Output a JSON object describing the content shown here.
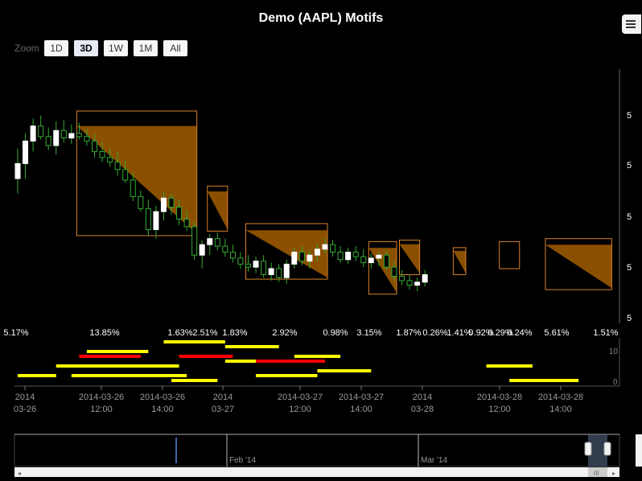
{
  "chart_data": {
    "type": "candlestick",
    "title": "Demo (AAPL) Motifs",
    "x_tick_labels": [
      {
        "date": "2014-03-26 10:00",
        "line1": "2014",
        "line2": "03-26"
      },
      {
        "date": "2014-03-26 12:00",
        "line1": "2014-03-26",
        "line2": "12:00"
      },
      {
        "date": "2014-03-26 14:00",
        "line1": "2014-03-26",
        "line2": "14:00"
      },
      {
        "date": "2014-03-27 10:00",
        "line1": "2014",
        "line2": "03-27"
      },
      {
        "date": "2014-03-27 12:00",
        "line1": "2014-03-27",
        "line2": "12:00"
      },
      {
        "date": "2014-03-27 14:00",
        "line1": "2014-03-27",
        "line2": "14:00"
      },
      {
        "date": "2014-03-28 10:00",
        "line1": "2014",
        "line2": "03-28"
      },
      {
        "date": "2014-03-28 12:00",
        "line1": "2014-03-28",
        "line2": "12:00"
      },
      {
        "date": "2014-03-28 14:00",
        "line1": "2014-03-28",
        "line2": "14:00"
      }
    ],
    "price_axis_label_visible": "5",
    "volume_axis_ticks": [
      "10",
      "0"
    ],
    "motif_percent_labels": [
      "5.17%",
      "13.85%",
      "1.63%",
      "2.51%",
      "1.83%",
      "2.92%",
      "0.98%",
      "3.15%",
      "1.87%",
      "0.26%",
      "1.41%",
      "0.92%",
      "0.29%",
      "0.24%",
      "5.61%",
      "1.51%"
    ],
    "candles": [
      [
        0,
        549,
        551,
        548,
        550
      ],
      [
        1,
        550,
        552,
        549,
        551.5
      ],
      [
        2,
        551.5,
        553,
        550.8,
        552.5
      ],
      [
        3,
        552.5,
        553.2,
        551.6,
        551.8
      ],
      [
        4,
        551.8,
        552.4,
        550.9,
        551.2
      ],
      [
        5,
        551.2,
        552.8,
        550.6,
        552.2
      ],
      [
        6,
        552.2,
        552.9,
        551.4,
        551.7
      ],
      [
        7,
        551.7,
        552.6,
        551.3,
        552.0
      ],
      [
        8,
        552.0,
        552.7,
        551.6,
        551.8
      ],
      [
        9,
        551.8,
        552.3,
        551.2,
        551.5
      ],
      [
        10,
        551.5,
        552.0,
        550.4,
        550.8
      ],
      [
        11,
        550.8,
        551.4,
        550.1,
        550.4
      ],
      [
        12,
        550.4,
        551.0,
        549.8,
        550.1
      ],
      [
        13,
        550.1,
        550.8,
        549.2,
        549.6
      ],
      [
        14,
        549.6,
        550.2,
        548.7,
        548.9
      ],
      [
        15,
        548.9,
        549.4,
        547.5,
        547.8
      ],
      [
        16,
        547.8,
        548.2,
        546.8,
        547.0
      ],
      [
        17,
        547.0,
        547.6,
        545.2,
        545.6
      ],
      [
        18,
        545.6,
        547.2,
        545.0,
        546.8
      ],
      [
        19,
        546.8,
        548.1,
        546.2,
        547.7
      ],
      [
        20,
        547.7,
        548.0,
        546.6,
        547.1
      ],
      [
        21,
        547.1,
        547.6,
        545.9,
        546.3
      ],
      [
        22,
        546.3,
        546.9,
        545.5,
        545.8
      ],
      [
        23,
        545.8,
        546.1,
        543.6,
        543.9
      ],
      [
        24,
        543.9,
        544.9,
        543.0,
        544.6
      ],
      [
        25,
        544.6,
        545.3,
        543.9,
        545.0
      ],
      [
        26,
        545.0,
        545.4,
        544.2,
        544.5
      ],
      [
        27,
        544.5,
        545.0,
        543.8,
        544.1
      ],
      [
        28,
        544.1,
        544.6,
        543.4,
        543.7
      ],
      [
        29,
        543.7,
        544.1,
        543.0,
        543.3
      ],
      [
        30,
        543.3,
        543.9,
        542.8,
        543.1
      ],
      [
        31,
        543.1,
        543.8,
        542.7,
        543.5
      ],
      [
        32,
        543.5,
        543.9,
        542.4,
        542.6
      ],
      [
        33,
        542.6,
        543.4,
        542.2,
        543.0
      ],
      [
        34,
        543.0,
        543.3,
        542.1,
        542.4
      ],
      [
        35,
        542.4,
        543.6,
        542.0,
        543.3
      ],
      [
        36,
        543.3,
        544.4,
        543.0,
        544.1
      ],
      [
        37,
        544.1,
        544.5,
        543.2,
        543.5
      ],
      [
        38,
        543.5,
        544.2,
        543.0,
        543.9
      ],
      [
        39,
        543.9,
        544.6,
        543.5,
        544.3
      ],
      [
        40,
        544.3,
        545.0,
        544.0,
        544.6
      ],
      [
        41,
        544.6,
        544.9,
        543.8,
        544.1
      ],
      [
        42,
        544.1,
        544.5,
        543.4,
        543.6
      ],
      [
        43,
        543.6,
        544.4,
        543.3,
        544.1
      ],
      [
        44,
        544.1,
        544.5,
        543.5,
        543.8
      ],
      [
        45,
        543.8,
        544.3,
        543.1,
        543.4
      ],
      [
        46,
        543.4,
        544.0,
        543.0,
        543.7
      ],
      [
        47,
        543.7,
        544.1,
        543.2,
        543.9
      ],
      [
        48,
        543.9,
        544.2,
        542.9,
        543.1
      ],
      [
        49,
        543.1,
        543.5,
        542.2,
        542.5
      ],
      [
        50,
        542.5,
        542.9,
        541.9,
        542.2
      ],
      [
        51,
        542.2,
        542.6,
        541.6,
        541.9
      ],
      [
        52,
        541.9,
        542.4,
        541.5,
        542.1
      ],
      [
        53,
        542.1,
        542.9,
        541.8,
        542.6
      ]
    ],
    "motif_boxes": [
      {
        "x0": 8,
        "x1": 23,
        "hi": 553.5,
        "lo": 545.2,
        "fill": true
      },
      {
        "x0": 25,
        "x1": 27,
        "hi": 548.5,
        "lo": 545.5,
        "fill": true
      },
      {
        "x0": 30,
        "x1": 40,
        "hi": 546.0,
        "lo": 542.3,
        "fill": true
      },
      {
        "x0": 46,
        "x1": 49,
        "hi": 544.8,
        "lo": 541.3,
        "fill": true
      },
      {
        "x0": 50,
        "x1": 52,
        "hi": 544.9,
        "lo": 542.6,
        "fill": true
      },
      {
        "x0": 57,
        "x1": 58,
        "hi": 544.4,
        "lo": 542.6,
        "fill": true
      },
      {
        "x0": 63,
        "x1": 65,
        "hi": 544.8,
        "lo": 543.0,
        "fill": false
      },
      {
        "x0": 69,
        "x1": 77,
        "hi": 545.0,
        "lo": 541.6,
        "fill": true
      }
    ],
    "volume_bars": [
      {
        "x0": 0,
        "x1": 5,
        "level": 1,
        "color": "yellow"
      },
      {
        "x0": 5,
        "x1": 21,
        "level": 3,
        "color": "yellow"
      },
      {
        "x0": 7,
        "x1": 22,
        "level": 1,
        "color": "yellow"
      },
      {
        "x0": 8,
        "x1": 16,
        "level": 5,
        "color": "red"
      },
      {
        "x0": 9,
        "x1": 17,
        "level": 6,
        "color": "yellow"
      },
      {
        "x0": 19,
        "x1": 27,
        "level": 8,
        "color": "yellow"
      },
      {
        "x0": 21,
        "x1": 28,
        "level": 5,
        "color": "red"
      },
      {
        "x0": 27,
        "x1": 34,
        "level": 7,
        "color": "yellow"
      },
      {
        "x0": 27,
        "x1": 34,
        "level": 4,
        "color": "yellow"
      },
      {
        "x0": 31,
        "x1": 40,
        "level": 4,
        "color": "red"
      },
      {
        "x0": 31,
        "x1": 39,
        "level": 1,
        "color": "yellow"
      },
      {
        "x0": 36,
        "x1": 42,
        "level": 5,
        "color": "yellow"
      },
      {
        "x0": 39,
        "x1": 46,
        "level": 2,
        "color": "yellow"
      },
      {
        "x0": 61,
        "x1": 67,
        "level": 3,
        "color": "yellow"
      },
      {
        "x0": 64,
        "x1": 73,
        "level": 0,
        "color": "yellow"
      },
      {
        "x0": 20,
        "x1": 26,
        "level": 0,
        "color": "yellow"
      }
    ]
  },
  "zoom": {
    "label": "Zoom",
    "buttons": [
      "1D",
      "3D",
      "1W",
      "1M",
      "All"
    ],
    "selected": "3D"
  },
  "navigator": {
    "labels": [
      "Feb '14",
      "Mar '14"
    ]
  },
  "colors": {
    "background": "#000000",
    "up_candle": "#ffffff",
    "down_candle": "#000000",
    "motif_fill": "#8a5000",
    "motif_stroke": "#d9822b",
    "vol_yellow": "#ffff00",
    "vol_red": "#ff0000",
    "candle_wick": "#33aa33"
  }
}
